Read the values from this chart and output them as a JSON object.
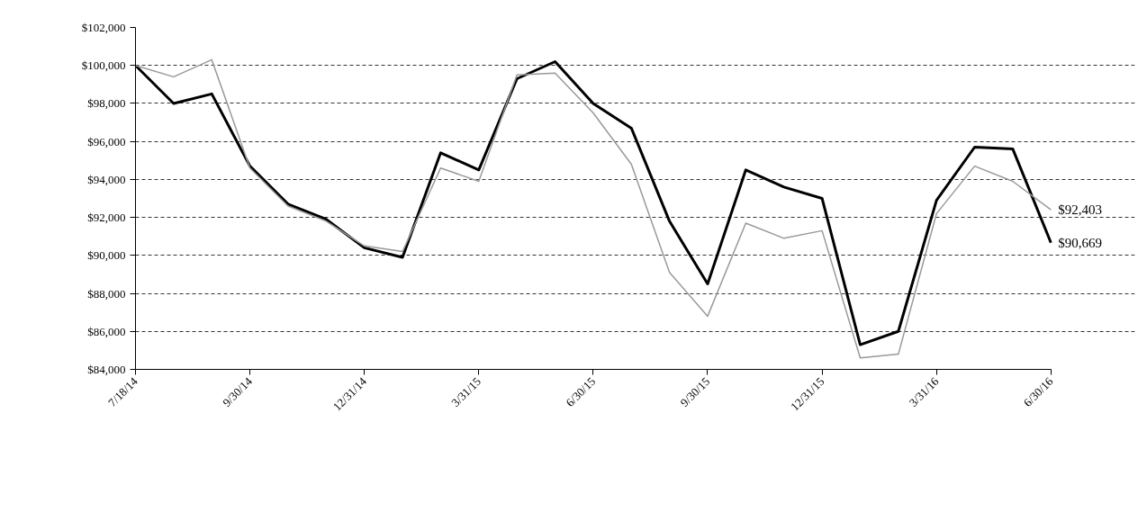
{
  "chart_data": {
    "type": "line",
    "categories": [
      "7/18/14",
      null,
      null,
      "9/30/14",
      null,
      null,
      "12/31/14",
      null,
      null,
      "3/31/15",
      null,
      null,
      "6/30/15",
      null,
      null,
      "9/30/15",
      null,
      null,
      "12/31/15",
      null,
      null,
      "3/31/16",
      null,
      null,
      "6/30/16"
    ],
    "series": [
      {
        "color": "#000000",
        "values": [
          100000,
          98000,
          98500,
          94700,
          92700,
          91900,
          90400,
          89900,
          95400,
          94500,
          99300,
          100200,
          98000,
          96700,
          91800,
          88500,
          94500,
          93600,
          93000,
          85300,
          86000,
          92900,
          95700,
          95600,
          90669
        ]
      },
      {
        "color": "#999999",
        "values": [
          100000,
          99400,
          100300,
          94600,
          92600,
          91800,
          90500,
          90200,
          94600,
          93900,
          99500,
          99600,
          97500,
          94800,
          89100,
          86800,
          91700,
          90900,
          91300,
          84600,
          84800,
          92200,
          94700,
          93900,
          92403
        ]
      }
    ],
    "ylim": [
      84000,
      102000
    ],
    "yticks": [
      {
        "value": 84000,
        "label": "$84,000"
      },
      {
        "value": 86000,
        "label": "$86,000"
      },
      {
        "value": 88000,
        "label": "$88,000"
      },
      {
        "value": 90000,
        "label": "$90,000"
      },
      {
        "value": 92000,
        "label": "$92,000"
      },
      {
        "value": 94000,
        "label": "$94,000"
      },
      {
        "value": 96000,
        "label": "$96,000"
      },
      {
        "value": 98000,
        "label": "$98,000"
      },
      {
        "value": 100000,
        "label": "$100,000"
      },
      {
        "value": 102000,
        "label": "$102,000"
      }
    ],
    "grid": "y",
    "line_style": "solid",
    "annotations": [
      {
        "text": "$92,403",
        "x": "6/30/16",
        "y": 92403
      },
      {
        "text": "$90,669",
        "x": "6/30/16",
        "y": 90669
      }
    ]
  }
}
